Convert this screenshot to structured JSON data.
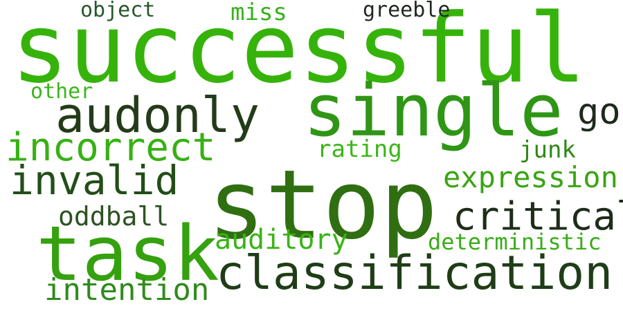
{
  "word_cloud": {
    "words": [
      {
        "text": "successful",
        "color": "#36b30b",
        "weight": 1.0
      },
      {
        "text": "stop",
        "color": "#2f6f11",
        "weight": 0.97
      },
      {
        "text": "task",
        "color": "#35a10f",
        "weight": 0.82
      },
      {
        "text": "single",
        "color": "#2f9615",
        "weight": 0.8
      },
      {
        "text": "classification",
        "color": "#1f3d17",
        "weight": 0.62
      },
      {
        "text": "audonly",
        "color": "#243b19",
        "weight": 0.6
      },
      {
        "text": "incorrect",
        "color": "#37b114",
        "weight": 0.5
      },
      {
        "text": "invalid",
        "color": "#234e18",
        "weight": 0.48
      },
      {
        "text": "critical",
        "color": "#1e2d19",
        "weight": 0.47
      },
      {
        "text": "go",
        "color": "#1e2a1d",
        "weight": 0.45
      },
      {
        "text": "intention",
        "color": "#2f8a1d",
        "weight": 0.39
      },
      {
        "text": "expression",
        "color": "#3aa413",
        "weight": 0.38
      },
      {
        "text": "auditory",
        "color": "#39b415",
        "weight": 0.34
      },
      {
        "text": "oddball",
        "color": "#2c5320",
        "weight": 0.33
      },
      {
        "text": "deterministic",
        "color": "#37ad16",
        "weight": 0.29
      },
      {
        "text": "rating",
        "color": "#3bb517",
        "weight": 0.29
      },
      {
        "text": "junk",
        "color": "#2f8816",
        "weight": 0.28
      },
      {
        "text": "miss",
        "color": "#36b21a",
        "weight": 0.28
      },
      {
        "text": "object",
        "color": "#28572a",
        "weight": 0.26
      },
      {
        "text": "other",
        "color": "#3bb51c",
        "weight": 0.25
      },
      {
        "text": "greeble",
        "color": "#22281f",
        "weight": 0.26
      }
    ]
  }
}
